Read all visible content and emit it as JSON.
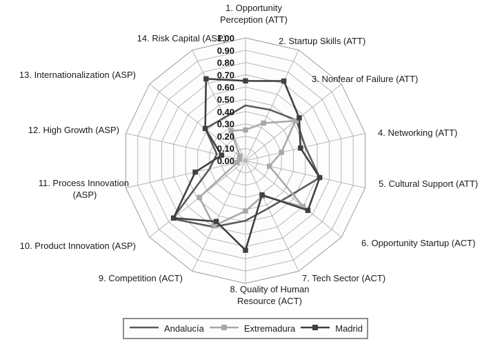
{
  "chart_data": {
    "type": "radar",
    "title": "",
    "rings": 10,
    "grid": true,
    "legend_position": "bottom",
    "r_axis": {
      "min": 0.0,
      "max": 1.0,
      "step": 0.1,
      "tick_labels": [
        "1.00",
        "0.90",
        "0.80",
        "0.70",
        "0.60",
        "0.50",
        "0.40",
        "0.30",
        "0.20",
        "0.10",
        "0.00"
      ]
    },
    "categories": [
      "1. Opportunity\nPerception (ATT)",
      "2. Startup Skills (ATT)",
      "3. Nonfear of Failure (ATT)",
      "4. Networking (ATT)",
      "5. Cultural Support (ATT)",
      "6. Opportunity Startup (ACT)",
      "7. Tech Sector (ACT)",
      "8. Quality of Human\nResource (ACT)",
      "9. Competition (ACT)",
      "10. Product Innovation (ASP)",
      "11. Process Innovation\n(ASP)",
      "12. High Growth (ASP)",
      "13. Internationalization (ASP)",
      "14. Risk Capital (ASP)"
    ],
    "series": [
      {
        "name": "Andalucía",
        "color": "#5b5b5b",
        "marker": "none",
        "values": [
          0.45,
          0.46,
          0.53,
          0.5,
          0.62,
          0.46,
          0.43,
          0.49,
          0.6,
          0.76,
          0.3,
          0.24,
          0.42,
          0.39
        ]
      },
      {
        "name": "Extremadura",
        "color": "#a8a8a8",
        "marker": "square",
        "values": [
          0.25,
          0.34,
          0.52,
          0.3,
          0.2,
          0.6,
          0.32,
          0.41,
          0.59,
          0.48,
          0.07,
          0.05,
          0.06,
          0.27
        ]
      },
      {
        "name": "Madrid",
        "color": "#404040",
        "marker": "square",
        "values": [
          0.65,
          0.72,
          0.56,
          0.46,
          0.62,
          0.65,
          0.31,
          0.73,
          0.55,
          0.75,
          0.42,
          0.2,
          0.42,
          0.74
        ]
      }
    ]
  },
  "grid_colors": {
    "ring": "#b5b5b5",
    "outer_ring": "#9b9b9b",
    "spoke": "#b5b5b5",
    "fill": "#fdfdfd"
  }
}
